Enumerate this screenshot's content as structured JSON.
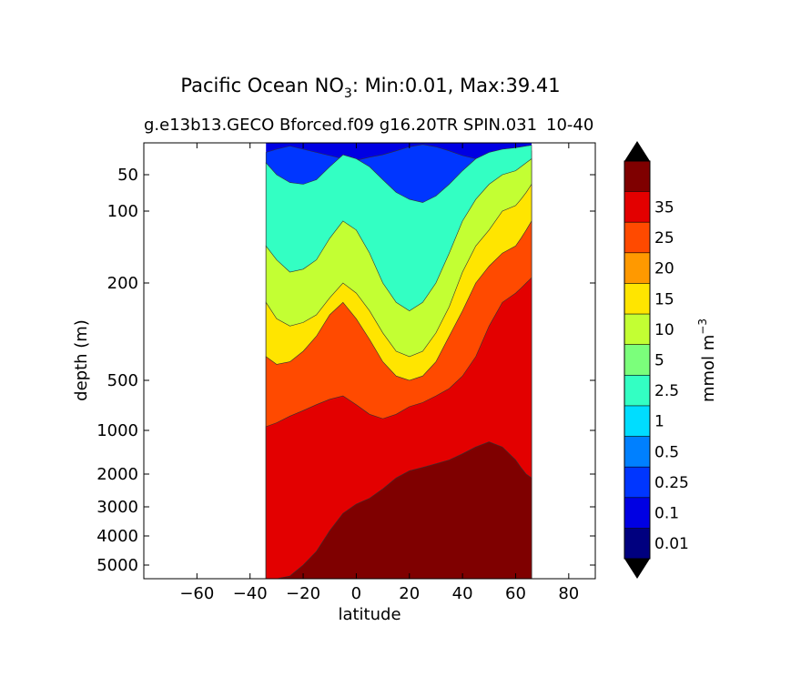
{
  "chart_data": {
    "type": "heatmap",
    "title_main": "Pacific Ocean NO",
    "title_sub": "3",
    "title_rest": ": Min:0.01, Max:39.41",
    "subtitle_left": "g.e13b13.GECO Bforced.f09 g16.20TR SPIN.031",
    "subtitle_right": "10-40",
    "xlabel": "latitude",
    "ylabel": "depth (m)",
    "colorbar_label": "mmol m",
    "colorbar_label_sup": "−3",
    "x_ticks": [
      -60,
      -40,
      -20,
      0,
      20,
      40,
      60,
      80
    ],
    "x_tick_labels": [
      "−60",
      "−40",
      "−20",
      "0",
      "20",
      "40",
      "60",
      "80"
    ],
    "xlim": [
      -80,
      90
    ],
    "y_ticks": [
      50,
      100,
      200,
      500,
      1000,
      2000,
      3000,
      4000,
      5000
    ],
    "y_tick_labels": [
      "50",
      "100",
      "200",
      "500",
      "1000",
      "2000",
      "3000",
      "4000",
      "5000"
    ],
    "ylim": [
      5500,
      10
    ],
    "levels": [
      "0.01",
      "0.1",
      "0.25",
      "0.5",
      "1",
      "2.5",
      "5",
      "10",
      "15",
      "20",
      "25",
      "35"
    ],
    "colors": [
      "#00007f",
      "#0000e3",
      "#0036ff",
      "#0080ff",
      "#00ddff",
      "#33ffc3",
      "#7bff7b",
      "#c3ff33",
      "#ffe500",
      "#ff9900",
      "#ff4a00",
      "#e30000",
      "#7f0000"
    ],
    "data_lat_range": [
      -34,
      66
    ],
    "stations_lat": [
      -34,
      -30,
      -25,
      -20,
      -15,
      -10,
      -5,
      0,
      5,
      10,
      15,
      20,
      25,
      30,
      35,
      40,
      45,
      50,
      55,
      60,
      62,
      64,
      66
    ],
    "contours": [
      {
        "level": 0.1,
        "depth_left": [
          22,
          18,
          14,
          18,
          22,
          26,
          30,
          32,
          28,
          25,
          20,
          15,
          12,
          15,
          20,
          26,
          30,
          28,
          25,
          20,
          20,
          20,
          20
        ]
      },
      {
        "level": 1,
        "depth_left": [
          35,
          50,
          58,
          60,
          55,
          40,
          25,
          30,
          40,
          55,
          70,
          80,
          85,
          75,
          60,
          45,
          30,
          22,
          18,
          16,
          15,
          14,
          13
        ]
      },
      {
        "level": 5,
        "depth_left": [
          140,
          160,
          180,
          175,
          160,
          130,
          110,
          120,
          150,
          200,
          240,
          260,
          240,
          200,
          150,
          110,
          80,
          60,
          50,
          45,
          40,
          35,
          30
        ]
      },
      {
        "level": 10,
        "depth_left": [
          240,
          280,
          300,
          290,
          270,
          230,
          200,
          220,
          260,
          320,
          380,
          400,
          380,
          320,
          250,
          180,
          140,
          120,
          100,
          90,
          80,
          70,
          60
        ]
      },
      {
        "level": 15,
        "depth_left": [
          400,
          430,
          420,
          380,
          330,
          270,
          240,
          280,
          340,
          420,
          480,
          500,
          480,
          420,
          330,
          260,
          200,
          170,
          150,
          140,
          130,
          120,
          110
        ]
      },
      {
        "level": 25,
        "depth_left": [
          950,
          900,
          820,
          760,
          700,
          650,
          620,
          700,
          800,
          850,
          800,
          720,
          680,
          620,
          560,
          480,
          400,
          300,
          240,
          220,
          210,
          200,
          190
        ]
      },
      {
        "level": 35,
        "depth_left": [
          5500,
          5500,
          5400,
          5000,
          4500,
          3800,
          3200,
          2900,
          2700,
          2400,
          2100,
          1900,
          1800,
          1700,
          1600,
          1450,
          1300,
          1200,
          1300,
          1600,
          1800,
          2000,
          2100
        ]
      }
    ]
  }
}
